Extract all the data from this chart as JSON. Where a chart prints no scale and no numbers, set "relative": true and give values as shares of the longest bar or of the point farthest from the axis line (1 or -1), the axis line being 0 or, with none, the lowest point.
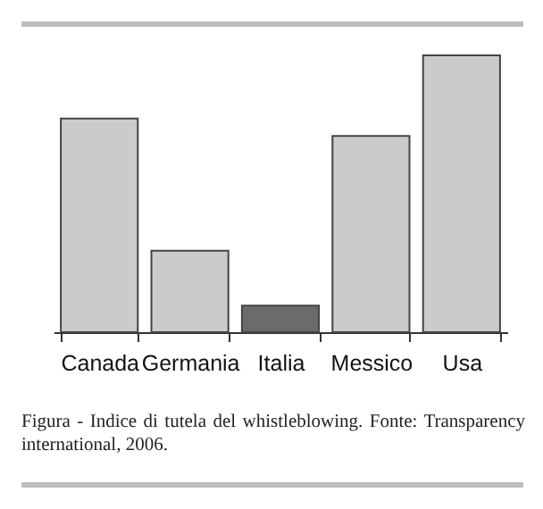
{
  "chart_data": {
    "type": "bar",
    "relative": true,
    "categories": [
      "Canada",
      "Germania",
      "Italia",
      "Messico",
      "Usa"
    ],
    "values": [
      0.772,
      0.294,
      0.096,
      0.709,
      1
    ],
    "colors": [
      "#cbcbcb",
      "#cbcbcb",
      "#6b6b6b",
      "#cbcbcb",
      "#cbcbcb"
    ],
    "annotations": [
      "Figura - Indice di tutela del whistleblowing. Fonte: Transparency international, 2006."
    ]
  }
}
